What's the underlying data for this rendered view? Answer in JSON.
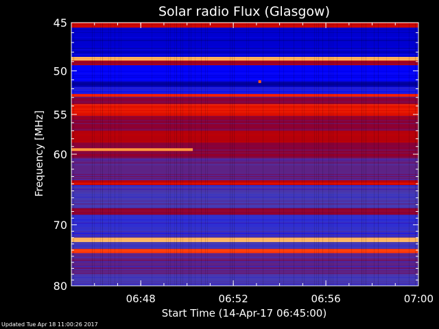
{
  "chart_data": {
    "type": "heatmap",
    "title": "Solar radio Flux (Glasgow)",
    "xlabel": "Start Time (14-Apr-17 06:45:00)",
    "ylabel": "Frequency [MHz]",
    "x_range": [
      "06:45",
      "07:00"
    ],
    "x_ticks": [
      "06:48",
      "06:52",
      "06:56",
      "07:00"
    ],
    "y_range": [
      45,
      80
    ],
    "y_scale": "log",
    "y_ticks": [
      45,
      50,
      55,
      60,
      70,
      80
    ],
    "colormap": [
      "#000066",
      "#0000ff",
      "#4040c0",
      "#800040",
      "#c00000",
      "#ff2000",
      "#ff8020",
      "#ffd080"
    ],
    "bands": [
      {
        "from": 45.0,
        "to": 45.5,
        "level": 0.6
      },
      {
        "from": 45.5,
        "to": 48.5,
        "level": 0.1
      },
      {
        "from": 48.5,
        "to": 48.9,
        "level": 0.95
      },
      {
        "from": 48.9,
        "to": 49.4,
        "level": 0.5
      },
      {
        "from": 49.4,
        "to": 51.2,
        "level": 0.15
      },
      {
        "from": 51.2,
        "to": 51.8,
        "level": 0.05
      },
      {
        "from": 51.8,
        "to": 52.6,
        "level": 0.2
      },
      {
        "from": 52.6,
        "to": 52.9,
        "level": 0.7
      },
      {
        "from": 52.9,
        "to": 53.8,
        "level": 0.45
      },
      {
        "from": 53.8,
        "to": 55.2,
        "level": 0.65
      },
      {
        "from": 55.2,
        "to": 57.0,
        "level": 0.45
      },
      {
        "from": 57.0,
        "to": 58.5,
        "level": 0.55
      },
      {
        "from": 58.5,
        "to": 60.5,
        "level": 0.45
      },
      {
        "from": 60.5,
        "to": 63.5,
        "level": 0.35
      },
      {
        "from": 63.5,
        "to": 64.2,
        "level": 0.6
      },
      {
        "from": 64.2,
        "to": 67.5,
        "level": 0.3
      },
      {
        "from": 67.5,
        "to": 68.5,
        "level": 0.45
      },
      {
        "from": 68.5,
        "to": 72.0,
        "level": 0.25
      },
      {
        "from": 72.0,
        "to": 72.7,
        "level": 0.95
      },
      {
        "from": 72.7,
        "to": 73.8,
        "level": 0.3
      },
      {
        "from": 73.8,
        "to": 74.5,
        "level": 0.75
      },
      {
        "from": 74.5,
        "to": 78.0,
        "level": 0.35
      },
      {
        "from": 78.0,
        "to": 80.0,
        "level": 0.3
      }
    ],
    "features": [
      {
        "freq": 59.4,
        "t_from": "06:45",
        "t_to": "06:50:15",
        "level": 0.9
      },
      {
        "freq": 51.2,
        "t_from": "06:53:05",
        "t_to": "06:53:10",
        "level": 0.8
      }
    ],
    "grid": false,
    "legend": "none"
  },
  "footer": {
    "updated": "Updated Tue Apr 18 11:00:26 2017"
  }
}
